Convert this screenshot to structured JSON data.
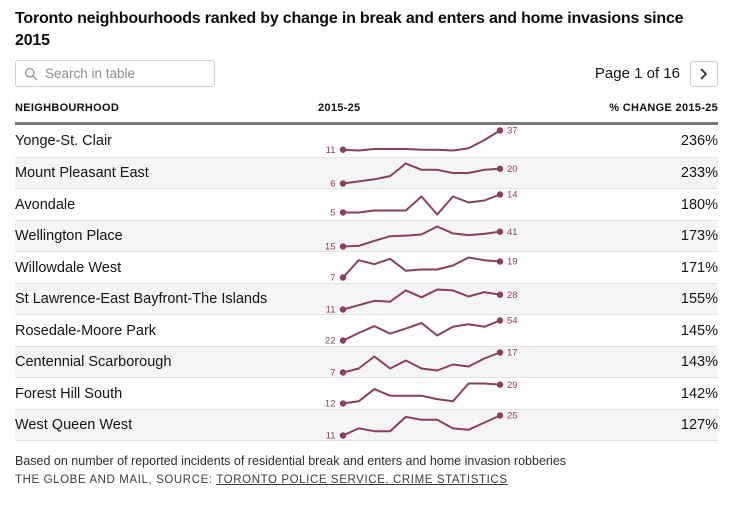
{
  "title": "Toronto neighbourhoods ranked by change in break and enters and home invasions since 2015",
  "toolbar": {
    "search_placeholder": "Search in table",
    "page_label": "Page 1 of 16"
  },
  "icons": {
    "search": "magnifier-icon",
    "next_page": "chevron-right-icon"
  },
  "colors": {
    "accent": "#8b3d62",
    "row_alt_bg": "#f5f5f5"
  },
  "table": {
    "columns": {
      "neighbourhood": "NEIGHBOURHOOD",
      "trend": "2015-25",
      "pct": "% CHANGE 2015-25"
    }
  },
  "chart_data": {
    "type": "line",
    "subtype": "sparklines-in-table",
    "x_range_label": "2015-25",
    "legend": "none",
    "grid": "off",
    "rows": [
      {
        "neighbourhood": "Yonge-St. Clair",
        "values": [
          11,
          10,
          12,
          12,
          12,
          11,
          11,
          10,
          13,
          24,
          37
        ],
        "start_label": "11",
        "end_label": "37",
        "pct_change": "236%"
      },
      {
        "neighbourhood": "Mount Pleasant East",
        "values": [
          6,
          8,
          10,
          13,
          25,
          19,
          19,
          16,
          16,
          19,
          20
        ],
        "start_label": "6",
        "end_label": "20",
        "pct_change": "233%"
      },
      {
        "neighbourhood": "Avondale",
        "values": [
          5,
          5,
          6,
          6,
          6,
          13,
          4,
          13,
          10,
          11,
          14
        ],
        "start_label": "5",
        "end_label": "14",
        "pct_change": "180%"
      },
      {
        "neighbourhood": "Wellington Place",
        "values": [
          15,
          16,
          25,
          33,
          34,
          36,
          50,
          38,
          35,
          37,
          41
        ],
        "start_label": "15",
        "end_label": "41",
        "pct_change": "173%"
      },
      {
        "neighbourhood": "Willowdale West",
        "values": [
          7,
          20,
          17,
          21,
          12,
          13,
          13,
          16,
          22,
          20,
          19
        ],
        "start_label": "7",
        "end_label": "19",
        "pct_change": "171%"
      },
      {
        "neighbourhood": "St Lawrence-East Bayfront-The Islands",
        "values": [
          11,
          16,
          21,
          20,
          33,
          25,
          34,
          33,
          26,
          31,
          28
        ],
        "start_label": "11",
        "end_label": "28",
        "pct_change": "155%"
      },
      {
        "neighbourhood": "Rosedale-Moore Park",
        "values": [
          22,
          34,
          45,
          33,
          41,
          50,
          30,
          44,
          48,
          44,
          54
        ],
        "start_label": "22",
        "end_label": "54",
        "pct_change": "145%"
      },
      {
        "neighbourhood": "Centennial Scarborough",
        "values": [
          7,
          9,
          15,
          9,
          13,
          9,
          8,
          11,
          10,
          14,
          17
        ],
        "start_label": "7",
        "end_label": "17",
        "pct_change": "143%"
      },
      {
        "neighbourhood": "Forest Hill South",
        "values": [
          12,
          14,
          25,
          19,
          19,
          19,
          16,
          14,
          30,
          30,
          29
        ],
        "start_label": "12",
        "end_label": "29",
        "pct_change": "142%"
      },
      {
        "neighbourhood": "West Queen West",
        "values": [
          11,
          16,
          14,
          14,
          24,
          22,
          22,
          16,
          15,
          20,
          25
        ],
        "start_label": "11",
        "end_label": "25",
        "pct_change": "127%"
      }
    ]
  },
  "footer": {
    "note": "Based on number of reported incidents of residential break and enters and home invasion robberies",
    "credit_prefix": "THE GLOBE AND MAIL, SOURCE: ",
    "source_link": "TORONTO POLICE SERVICE, CRIME STATISTICS"
  }
}
